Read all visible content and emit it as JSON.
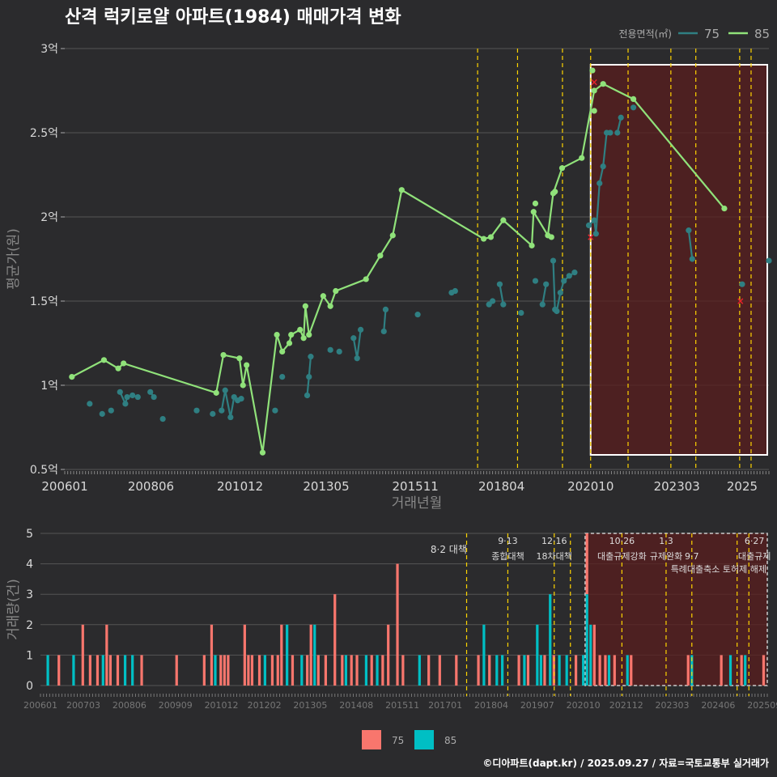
{
  "title": "산격 럭키로얄 아파트(1984) 매매가격 변화",
  "footer": "©디아파트(dapt.kr) / 2025.09.27 / 자료=국토교통부 실거래가",
  "colors": {
    "bg": "#2b2b2d",
    "grid": "#555555",
    "text": "#d8d8d8",
    "axis_label": "#888888",
    "s75": "#2f7f82",
    "s85": "#90e27a",
    "bar75": "#f8766d",
    "bar85": "#00bfc4",
    "policy": "#ffd400",
    "highlight": "#5a1e1e",
    "cancel": "#e8232a"
  },
  "chart_data": [
    {
      "type": "line",
      "title": "산격 럭키로얄 아파트(1984) 매매가격 변화",
      "xlabel": "거래년월",
      "ylabel": "평균가(원)",
      "ylim": [
        0.5,
        3.0
      ],
      "xlim": [
        2006.0,
        2025.75
      ],
      "yticks": [
        0.5,
        1,
        1.5,
        2,
        2.5,
        3
      ],
      "ytick_labels": [
        "0.5억",
        "1억",
        "1.5억",
        "2억",
        "2.5억",
        "3억"
      ],
      "xticks": [
        2006.0,
        2008.417,
        2010.917,
        2013.333,
        2015.833,
        2018.25,
        2020.75,
        2023.167,
        2025.0
      ],
      "xtick_labels": [
        "200601",
        "200806",
        "201012",
        "201305",
        "201511",
        "201804",
        "202010",
        "202303",
        "2025"
      ],
      "legend_title": "전용면적(㎡)",
      "legend": [
        "75",
        "85"
      ],
      "highlight_range": [
        2020.75,
        2025.75
      ],
      "policy_lines": [
        2017.58,
        2018.7,
        2019.96,
        2020.75,
        2021.8,
        2023.0,
        2023.7,
        2024.93,
        2025.25
      ],
      "series": [
        {
          "name": "85",
          "points": [
            [
              2006.2,
              1.05
            ],
            [
              2007.1,
              1.15
            ],
            [
              2007.5,
              1.1
            ],
            [
              2007.65,
              1.13
            ],
            [
              2010.25,
              0.955
            ],
            [
              2010.45,
              1.18
            ],
            [
              2010.9,
              1.16
            ],
            [
              2011.0,
              1.0
            ],
            [
              2011.1,
              1.12
            ],
            [
              2011.55,
              0.6
            ],
            [
              2011.95,
              1.3
            ],
            [
              2012.1,
              1.2
            ],
            [
              2012.3,
              1.25
            ],
            [
              2012.35,
              1.3
            ],
            [
              2012.6,
              1.33
            ],
            [
              2012.7,
              1.28
            ],
            [
              2012.75,
              1.47
            ],
            [
              2012.85,
              1.3
            ],
            [
              2013.25,
              1.53
            ],
            [
              2013.45,
              1.47
            ],
            [
              2013.6,
              1.56
            ],
            [
              2014.45,
              1.63
            ],
            [
              2014.85,
              1.77
            ],
            [
              2015.2,
              1.89
            ],
            [
              2015.45,
              2.16
            ],
            [
              2017.75,
              1.87
            ],
            [
              2017.95,
              1.88
            ],
            [
              2018.3,
              1.98
            ],
            [
              2019.1,
              1.83
            ],
            [
              2019.15,
              2.03
            ],
            [
              2019.55,
              1.89
            ],
            [
              2019.7,
              2.14
            ],
            [
              2019.95,
              2.29
            ],
            [
              2020.5,
              2.35
            ],
            [
              2020.85,
              2.75
            ],
            [
              2021.1,
              2.79
            ],
            [
              2021.95,
              2.7
            ],
            [
              2024.5,
              2.05
            ]
          ],
          "extra_points": [
            [
              2019.2,
              2.08
            ],
            [
              2019.75,
              2.15
            ],
            [
              2019.65,
              1.88
            ],
            [
              2020.8,
              2.87
            ],
            [
              2020.85,
              2.63
            ]
          ]
        },
        {
          "name": "75",
          "points": [
            [
              2006.7,
              0.89
            ],
            [
              2007.05,
              0.83
            ],
            [
              2007.3,
              0.85
            ],
            [
              2007.55,
              0.96
            ],
            [
              2007.7,
              0.89
            ],
            [
              2007.75,
              0.93
            ],
            [
              2007.9,
              0.94
            ],
            [
              2008.05,
              0.93
            ],
            [
              2008.4,
              0.96
            ],
            [
              2008.5,
              0.93
            ],
            [
              2008.75,
              0.8
            ],
            [
              2009.7,
              0.85
            ],
            [
              2010.15,
              0.83
            ],
            [
              2010.4,
              0.85
            ],
            [
              2010.5,
              0.97
            ],
            [
              2010.65,
              0.81
            ],
            [
              2010.75,
              0.93
            ],
            [
              2010.85,
              0.91
            ],
            [
              2010.95,
              0.92
            ],
            [
              2011.9,
              0.85
            ],
            [
              2012.1,
              1.05
            ],
            [
              2012.8,
              0.94
            ],
            [
              2012.85,
              1.05
            ],
            [
              2012.9,
              1.17
            ],
            [
              2013.45,
              1.21
            ],
            [
              2013.7,
              1.2
            ],
            [
              2014.1,
              1.28
            ],
            [
              2014.2,
              1.16
            ],
            [
              2014.3,
              1.33
            ],
            [
              2014.95,
              1.32
            ],
            [
              2015.0,
              1.45
            ],
            [
              2015.9,
              1.42
            ],
            [
              2016.85,
              1.55
            ],
            [
              2016.95,
              1.56
            ],
            [
              2017.9,
              1.48
            ],
            [
              2018.0,
              1.5
            ],
            [
              2018.2,
              1.6
            ],
            [
              2018.3,
              1.48
            ],
            [
              2018.8,
              1.43
            ],
            [
              2019.2,
              1.62
            ],
            [
              2019.4,
              1.48
            ],
            [
              2019.5,
              1.6
            ],
            [
              2019.7,
              1.74
            ],
            [
              2019.75,
              1.45
            ],
            [
              2019.8,
              1.44
            ],
            [
              2019.9,
              1.55
            ],
            [
              2020.0,
              1.62
            ],
            [
              2020.15,
              1.65
            ],
            [
              2020.3,
              1.67
            ],
            [
              2020.7,
              1.95
            ],
            [
              2020.85,
              1.98
            ],
            [
              2020.9,
              1.9
            ],
            [
              2021.0,
              2.2
            ],
            [
              2021.1,
              2.3
            ],
            [
              2021.2,
              2.5
            ],
            [
              2021.3,
              2.5
            ],
            [
              2021.5,
              2.5
            ],
            [
              2021.6,
              2.59
            ],
            [
              2021.95,
              2.65
            ],
            [
              2023.5,
              1.92
            ],
            [
              2023.6,
              1.75
            ],
            [
              2025.0,
              1.6
            ],
            [
              2025.75,
              1.74
            ]
          ]
        }
      ],
      "cancelled": [
        [
          2020.75,
          1.88
        ],
        [
          2020.85,
          2.8
        ],
        [
          2024.95,
          1.5
        ]
      ]
    },
    {
      "type": "bar",
      "xlabel": "",
      "ylabel": "거래량(건)",
      "ylim": [
        0,
        5
      ],
      "yticks": [
        0,
        1,
        2,
        3,
        4,
        5
      ],
      "xticks": [
        2006.0,
        2007.167,
        2008.417,
        2009.667,
        2010.917,
        2012.083,
        2013.333,
        2014.583,
        2015.833,
        2017.0,
        2018.25,
        2019.5,
        2020.75,
        2021.917,
        2023.167,
        2024.417,
        2025.667
      ],
      "xtick_labels": [
        "200601",
        "200703",
        "200806",
        "200909",
        "201012",
        "201202",
        "201305",
        "201408",
        "201511",
        "201701",
        "201804",
        "201907",
        "202010",
        "202112",
        "202303",
        "202406",
        "202509"
      ],
      "legend": [
        "75",
        "85"
      ],
      "highlight_range": [
        2020.8,
        2025.75
      ],
      "policy_lines": [
        2017.58,
        2018.7,
        2019.96,
        2020.4,
        2021.8,
        2023.0,
        2023.7,
        2024.93,
        2025.25
      ],
      "policy_labels": [
        {
          "x": 2017.5,
          "line1": "",
          "line2": "8·2 대책",
          "align": "end",
          "row": 0
        },
        {
          "x": 2018.7,
          "line1": "9·13",
          "line2": "종합대책",
          "align": "middle",
          "row": 1
        },
        {
          "x": 2019.96,
          "line1": "12·16",
          "line2": "18차대책",
          "align": "middle",
          "row": 1
        },
        {
          "x": 2021.8,
          "line1": "10·26",
          "line2": "대출규제강화",
          "align": "middle",
          "row": 1
        },
        {
          "x": 2023.0,
          "line1": "1·3",
          "line2": "규제완화",
          "align": "middle",
          "row": 1
        },
        {
          "x": 2023.7,
          "line1": "",
          "line2": "9·7",
          "align": "middle",
          "row": 1
        },
        {
          "x": 2024.6,
          "line1": "",
          "line2": "특례대출축소 토허제 해제",
          "align": "middle",
          "row": 2
        },
        {
          "x": 2025.4,
          "line1": "6·27",
          "line2": "대출규제",
          "align": "middle",
          "row": 1
        }
      ],
      "bars": [
        [
          2006.2,
          0,
          1
        ],
        [
          2006.5,
          1,
          0
        ],
        [
          2006.9,
          0,
          1
        ],
        [
          2007.15,
          2,
          0
        ],
        [
          2007.35,
          1,
          0
        ],
        [
          2007.55,
          1,
          0
        ],
        [
          2007.7,
          0,
          1
        ],
        [
          2007.8,
          2,
          0
        ],
        [
          2007.9,
          1,
          0
        ],
        [
          2008.1,
          1,
          0
        ],
        [
          2008.3,
          0,
          1
        ],
        [
          2008.5,
          0,
          1
        ],
        [
          2008.75,
          1,
          0
        ],
        [
          2009.7,
          1,
          0
        ],
        [
          2010.45,
          1,
          0
        ],
        [
          2010.65,
          2,
          0
        ],
        [
          2010.75,
          0,
          1
        ],
        [
          2010.9,
          1,
          0
        ],
        [
          2011.0,
          1,
          0
        ],
        [
          2011.1,
          1,
          0
        ],
        [
          2011.55,
          2,
          0
        ],
        [
          2011.65,
          1,
          0
        ],
        [
          2011.75,
          1,
          0
        ],
        [
          2011.95,
          1,
          0
        ],
        [
          2012.1,
          0,
          1
        ],
        [
          2012.3,
          1,
          0
        ],
        [
          2012.45,
          1,
          0
        ],
        [
          2012.55,
          2,
          0
        ],
        [
          2012.7,
          0,
          2
        ],
        [
          2012.85,
          1,
          0
        ],
        [
          2013.1,
          0,
          1
        ],
        [
          2013.25,
          1,
          0
        ],
        [
          2013.35,
          2,
          0
        ],
        [
          2013.45,
          0,
          2
        ],
        [
          2013.55,
          1,
          0
        ],
        [
          2013.75,
          1,
          0
        ],
        [
          2014.0,
          3,
          0
        ],
        [
          2014.2,
          1,
          0
        ],
        [
          2014.3,
          0,
          1
        ],
        [
          2014.45,
          1,
          0
        ],
        [
          2014.6,
          1,
          0
        ],
        [
          2014.85,
          0,
          1
        ],
        [
          2015.0,
          1,
          0
        ],
        [
          2015.15,
          0,
          1
        ],
        [
          2015.3,
          1,
          0
        ],
        [
          2015.45,
          2,
          0
        ],
        [
          2015.7,
          4,
          0
        ],
        [
          2015.85,
          1,
          0
        ],
        [
          2016.3,
          0,
          1
        ],
        [
          2016.55,
          1,
          0
        ],
        [
          2016.85,
          1,
          0
        ],
        [
          2017.3,
          1,
          0
        ],
        [
          2017.9,
          1,
          0
        ],
        [
          2018.05,
          0,
          2
        ],
        [
          2018.2,
          1,
          0
        ],
        [
          2018.4,
          0,
          1
        ],
        [
          2018.55,
          0,
          1
        ],
        [
          2019.0,
          1,
          0
        ],
        [
          2019.15,
          0,
          1
        ],
        [
          2019.25,
          1,
          0
        ],
        [
          2019.5,
          0,
          2
        ],
        [
          2019.6,
          0,
          1
        ],
        [
          2019.7,
          1,
          0
        ],
        [
          2019.85,
          0,
          3
        ],
        [
          2019.95,
          1,
          0
        ],
        [
          2020.1,
          0,
          1
        ],
        [
          2020.3,
          0,
          1
        ],
        [
          2020.55,
          1,
          0
        ],
        [
          2020.75,
          0,
          1
        ],
        [
          2020.85,
          2,
          3
        ],
        [
          2020.95,
          0,
          2
        ],
        [
          2021.05,
          2,
          0
        ],
        [
          2021.2,
          1,
          0
        ],
        [
          2021.35,
          1,
          0
        ],
        [
          2021.45,
          0,
          1
        ],
        [
          2021.6,
          1,
          0
        ],
        [
          2021.95,
          0,
          1
        ],
        [
          2022.05,
          1,
          0
        ],
        [
          2023.6,
          1,
          0
        ],
        [
          2023.7,
          0,
          1
        ],
        [
          2024.5,
          1,
          0
        ],
        [
          2024.75,
          0,
          1
        ],
        [
          2025.05,
          1,
          0
        ],
        [
          2025.15,
          0,
          1
        ],
        [
          2025.65,
          1,
          0
        ]
      ]
    }
  ]
}
